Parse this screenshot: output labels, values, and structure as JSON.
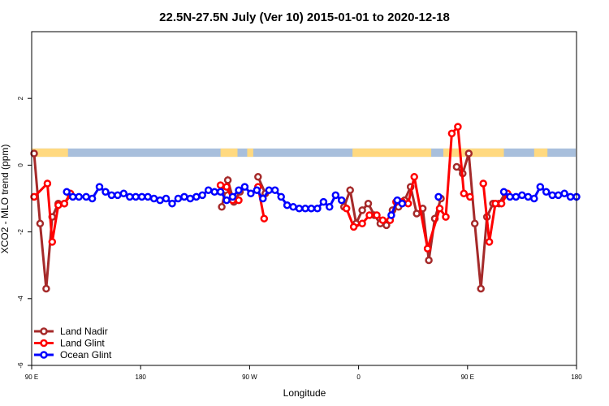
{
  "chart_data": {
    "type": "line",
    "title": "22.5N-27.5N July (Ver 10)   2015-01-01 to 2020-12-18",
    "xlabel": "Longitude",
    "ylabel": "XCO2 - MLO trend (ppm)",
    "x_ticks": [
      {
        "value": 90,
        "label": "90 E"
      },
      {
        "value": 180,
        "label": "180"
      },
      {
        "value": 270,
        "label": "90 W"
      },
      {
        "value": 360,
        "label": "0"
      },
      {
        "value": 450,
        "label": "90 E"
      },
      {
        "value": 540,
        "label": "180"
      }
    ],
    "y_ticks": [
      {
        "value": -6,
        "label": "-6"
      },
      {
        "value": -4,
        "label": "-4"
      },
      {
        "value": -2,
        "label": "-2"
      },
      {
        "value": 0,
        "label": "0"
      },
      {
        "value": 2,
        "label": "2"
      }
    ],
    "xlim": [
      90,
      540
    ],
    "ylim": [
      -6,
      4
    ],
    "grid": false,
    "legend_position": "bottom-left",
    "land_ocean_band": {
      "y_range": [
        0.25,
        0.5
      ],
      "ocean_color": "#a8bfdc",
      "land_color": "#ffd980",
      "land_segments": [
        [
          90,
          120
        ],
        [
          246,
          260
        ],
        [
          268,
          273
        ],
        [
          355,
          420
        ],
        [
          430,
          480
        ],
        [
          505,
          516
        ]
      ]
    },
    "series": [
      {
        "name": "Land Nadir",
        "color": "#a52a2a",
        "segments": [
          [
            [
              92,
              0.35
            ],
            [
              97,
              -1.75
            ],
            [
              102,
              -3.7
            ],
            [
              107,
              -1.55
            ],
            [
              112,
              -1.15
            ],
            [
              117,
              -1.15
            ],
            [
              122,
              -0.9
            ]
          ],
          [
            [
              247,
              -1.25
            ],
            [
              250,
              -0.75
            ],
            [
              252,
              -0.45
            ],
            [
              257,
              -1.1
            ],
            [
              262,
              -0.8
            ]
          ],
          [
            [
              277,
              -0.35
            ],
            [
              283,
              -0.85
            ]
          ],
          [
            [
              348,
              -1.25
            ],
            [
              353,
              -0.75
            ],
            [
              358,
              -1.75
            ],
            [
              363,
              -1.35
            ],
            [
              368,
              -1.15
            ],
            [
              373,
              -1.5
            ],
            [
              378,
              -1.75
            ],
            [
              383,
              -1.8
            ],
            [
              388,
              -1.35
            ],
            [
              393,
              -1.25
            ],
            [
              398,
              -1.05
            ],
            [
              403,
              -0.65
            ],
            [
              408,
              -1.45
            ],
            [
              413,
              -1.3
            ],
            [
              418,
              -2.85
            ],
            [
              423,
              -1.6
            ],
            [
              428,
              -1.0
            ]
          ],
          [
            [
              441,
              -0.05
            ],
            [
              446,
              -0.25
            ],
            [
              451,
              0.35
            ],
            [
              456,
              -1.75
            ],
            [
              461,
              -3.7
            ],
            [
              466,
              -1.55
            ],
            [
              471,
              -1.15
            ],
            [
              476,
              -1.15
            ],
            [
              481,
              -0.85
            ]
          ]
        ]
      },
      {
        "name": "Land Glint",
        "color": "#ff0000",
        "segments": [
          [
            [
              92,
              -0.95
            ],
            [
              103,
              -0.55
            ],
            [
              107,
              -2.3
            ],
            [
              112,
              -1.2
            ],
            [
              117,
              -1.15
            ],
            [
              122,
              -0.85
            ]
          ],
          [
            [
              246,
              -0.6
            ],
            [
              251,
              -0.65
            ],
            [
              256,
              -1.05
            ],
            [
              261,
              -1.05
            ]
          ],
          [
            [
              277,
              -0.65
            ],
            [
              282,
              -1.6
            ]
          ],
          [
            [
              350,
              -1.3
            ],
            [
              356,
              -1.85
            ],
            [
              363,
              -1.75
            ],
            [
              369,
              -1.5
            ],
            [
              375,
              -1.5
            ],
            [
              380,
              -1.65
            ],
            [
              386,
              -1.65
            ],
            [
              391,
              -1.1
            ],
            [
              396,
              -1.1
            ],
            [
              401,
              -1.15
            ],
            [
              406,
              -0.35
            ],
            [
              417,
              -2.5
            ],
            [
              427,
              -1.3
            ],
            [
              432,
              -1.55
            ],
            [
              437,
              0.95
            ],
            [
              442,
              1.15
            ],
            [
              447,
              -0.85
            ],
            [
              452,
              -0.95
            ]
          ],
          [
            [
              463,
              -0.55
            ],
            [
              468,
              -2.3
            ],
            [
              473,
              -1.15
            ],
            [
              478,
              -1.15
            ],
            [
              483,
              -0.85
            ]
          ]
        ]
      },
      {
        "name": "Ocean Glint",
        "color": "#0000ff",
        "segments": [
          [
            [
              119,
              -0.8
            ],
            [
              124,
              -0.95
            ],
            [
              129,
              -0.95
            ],
            [
              135,
              -0.95
            ],
            [
              140,
              -1.0
            ],
            [
              146,
              -0.65
            ],
            [
              151,
              -0.8
            ],
            [
              156,
              -0.9
            ],
            [
              161,
              -0.9
            ],
            [
              166,
              -0.85
            ],
            [
              171,
              -0.95
            ],
            [
              176,
              -0.95
            ],
            [
              181,
              -0.95
            ],
            [
              186,
              -0.95
            ],
            [
              191,
              -1.0
            ],
            [
              196,
              -1.05
            ],
            [
              201,
              -1.0
            ],
            [
              206,
              -1.15
            ],
            [
              211,
              -1.0
            ],
            [
              216,
              -0.95
            ],
            [
              221,
              -1.0
            ],
            [
              226,
              -0.95
            ],
            [
              231,
              -0.9
            ],
            [
              236,
              -0.75
            ],
            [
              241,
              -0.8
            ],
            [
              246,
              -0.8
            ],
            [
              251,
              -1.05
            ],
            [
              256,
              -0.95
            ],
            [
              261,
              -0.75
            ],
            [
              266,
              -0.65
            ],
            [
              271,
              -0.85
            ],
            [
              276,
              -0.75
            ],
            [
              281,
              -1.0
            ],
            [
              286,
              -0.75
            ],
            [
              291,
              -0.75
            ],
            [
              296,
              -0.95
            ],
            [
              301,
              -1.2
            ],
            [
              306,
              -1.25
            ],
            [
              311,
              -1.3
            ],
            [
              316,
              -1.3
            ],
            [
              321,
              -1.3
            ],
            [
              326,
              -1.3
            ],
            [
              331,
              -1.1
            ],
            [
              336,
              -1.25
            ],
            [
              341,
              -0.9
            ],
            [
              346,
              -1.05
            ]
          ],
          [
            [
              387,
              -1.5
            ],
            [
              392,
              -1.05
            ],
            [
              396,
              -1.15
            ]
          ],
          [
            [
              426,
              -0.95
            ]
          ],
          [
            [
              480,
              -0.8
            ],
            [
              485,
              -0.95
            ],
            [
              490,
              -0.95
            ],
            [
              495,
              -0.9
            ],
            [
              500,
              -0.95
            ],
            [
              505,
              -1.0
            ],
            [
              510,
              -0.65
            ],
            [
              515,
              -0.8
            ],
            [
              520,
              -0.9
            ],
            [
              525,
              -0.9
            ],
            [
              530,
              -0.85
            ],
            [
              535,
              -0.95
            ],
            [
              540,
              -0.95
            ]
          ]
        ]
      }
    ]
  }
}
